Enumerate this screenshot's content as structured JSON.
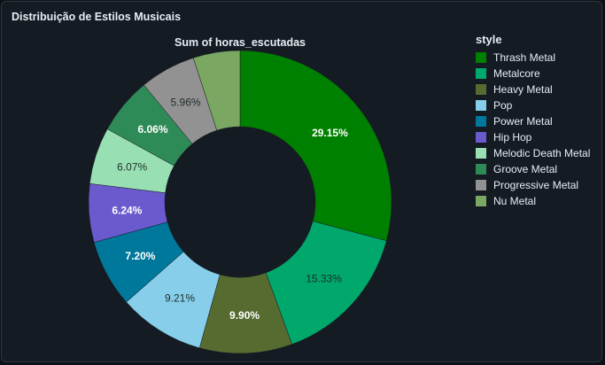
{
  "card": {
    "title": "Distribuição de Estilos Musicais"
  },
  "chart_data": {
    "type": "pie",
    "hole": true,
    "title": "Sum of horas_escutadas",
    "legend_title": "style",
    "legend_position": "right",
    "categories": [
      "Thrash Metal",
      "Metalcore",
      "Heavy Metal",
      "Pop",
      "Power Metal",
      "Hip Hop",
      "Melodic Death Metal",
      "Groove Metal",
      "Progressive Metal",
      "Nu Metal"
    ],
    "values": [
      29.15,
      15.33,
      9.9,
      9.21,
      7.2,
      6.24,
      6.07,
      6.06,
      5.96,
      5.0
    ],
    "labels": [
      "29.15%",
      "15.33%",
      "9.90%",
      "9.21%",
      "7.20%",
      "6.24%",
      "6.07%",
      "6.06%",
      "5.96%",
      ""
    ],
    "colors": [
      "#008000",
      "#00a86b",
      "#556b2f",
      "#87ceeb",
      "#00789b",
      "#6a5acd",
      "#98e0b4",
      "#2e8b57",
      "#929292",
      "#7aa862"
    ],
    "label_colors": [
      "#ffffff",
      "#1f2d2a",
      "#ffffff",
      "#1f2d2a",
      "#ffffff",
      "#ffffff",
      "#1f2d2a",
      "#ffffff",
      "#1f2d2a",
      "#ffffff"
    ]
  }
}
